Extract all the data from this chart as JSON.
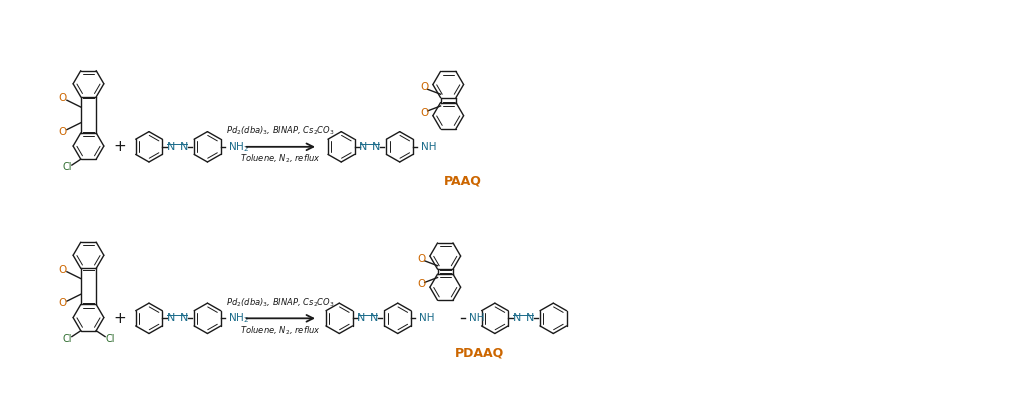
{
  "bg_color": "#ffffff",
  "bond_color": "#1a1a1a",
  "O_color": "#cc6600",
  "N_color": "#1a6b8a",
  "Cl_color": "#2d6b2d",
  "NH_color": "#1a6b8a",
  "reagent_color": "#1a1a1a",
  "PAAQ_color": "#cc6600",
  "PDAAQ_color": "#cc6600",
  "reaction1_reagent_line1": "Pd$_2$(dba)$_3$, BINAP, Cs$_2$CO$_3$",
  "reaction1_reagent_line2": "Toluene, N$_2$, reflux",
  "reaction2_reagent_line1": "Pd$_2$(dba)$_3$, BINAP, Cs$_2$CO$_3$",
  "reaction2_reagent_line2": "Toluene, N$_2$, reflux",
  "product1_label": "PAAQ",
  "product2_label": "PDAAQ",
  "figsize": [
    10.31,
    4.18
  ],
  "dpi": 100
}
